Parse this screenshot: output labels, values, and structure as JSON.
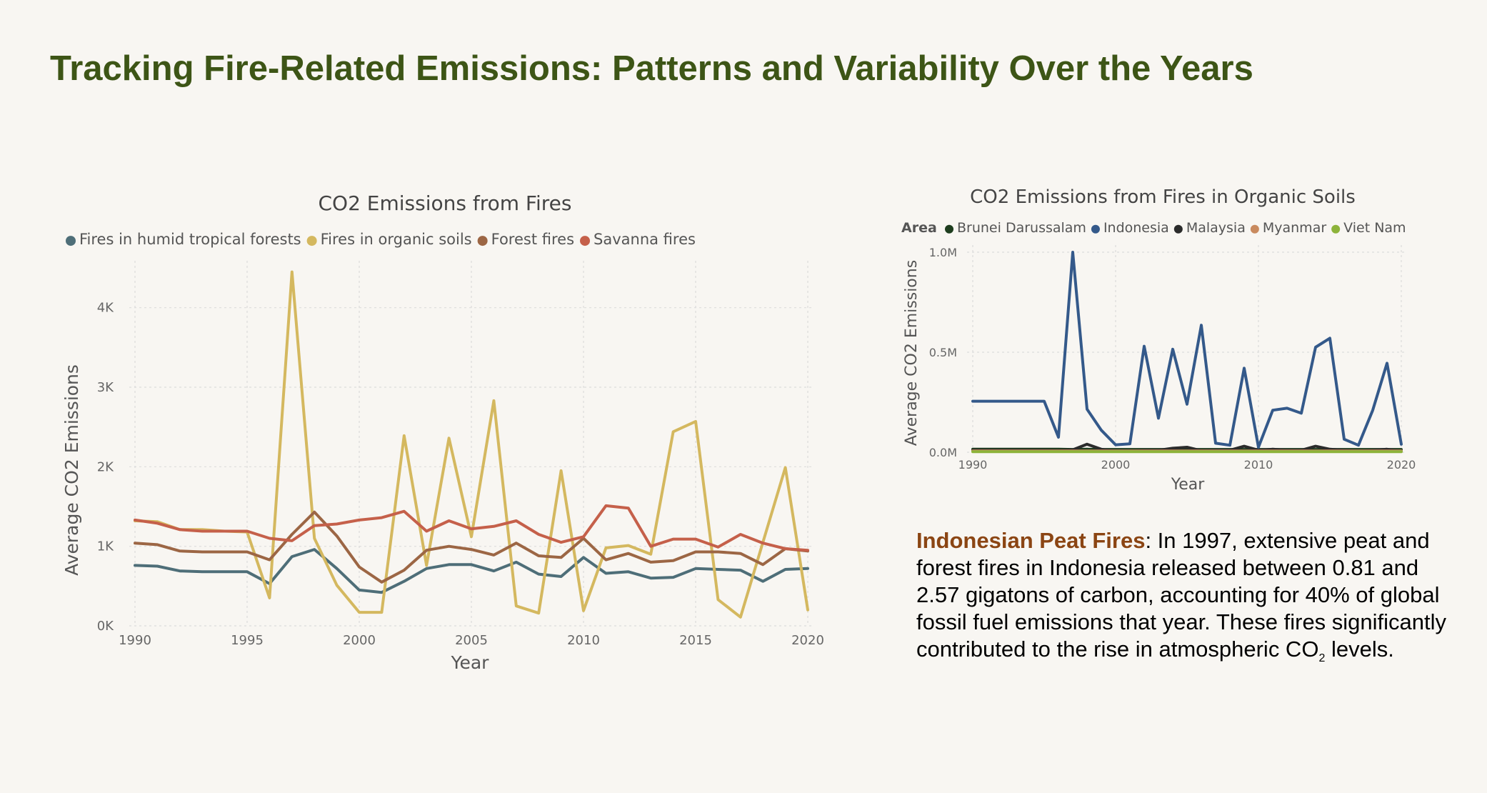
{
  "page": {
    "title": "Tracking Fire-Related Emissions: Patterns and Variability Over the Years"
  },
  "annotation": {
    "heading": "Indonesian Peat Fires",
    "body_before": ": In 1997, extensive peat and forest fires in Indonesia released between 0.81 and 2.57 gigatons of carbon, accounting for 40% of global fossil fuel emissions that year. These fires significantly contributed to the rise in atmospheric CO",
    "subscript": "2",
    "body_after": " levels."
  },
  "chart_data": [
    {
      "type": "line",
      "title": "CO2 Emissions from Fires",
      "xlabel": "Year",
      "ylabel": "Average CO2 Emissions",
      "x": [
        1990,
        1991,
        1992,
        1993,
        1994,
        1995,
        1996,
        1997,
        1998,
        1999,
        2000,
        2001,
        2002,
        2003,
        2004,
        2005,
        2006,
        2007,
        2008,
        2009,
        2010,
        2011,
        2012,
        2013,
        2014,
        2015,
        2016,
        2017,
        2018,
        2019,
        2020
      ],
      "xlim": [
        1990,
        2020
      ],
      "ylim": [
        0,
        4500
      ],
      "x_ticks": [
        {
          "value": 1990,
          "label": "1990"
        },
        {
          "value": 1995,
          "label": "1995"
        },
        {
          "value": 2000,
          "label": "2000"
        },
        {
          "value": 2005,
          "label": "2005"
        },
        {
          "value": 2010,
          "label": "2010"
        },
        {
          "value": 2015,
          "label": "2015"
        },
        {
          "value": 2020,
          "label": "2020"
        }
      ],
      "y_ticks": [
        {
          "value": 0,
          "label": "0K"
        },
        {
          "value": 1000,
          "label": "1K"
        },
        {
          "value": 2000,
          "label": "2K"
        },
        {
          "value": 3000,
          "label": "3K"
        },
        {
          "value": 4000,
          "label": "4K"
        }
      ],
      "grid": true,
      "legend_position": "top",
      "series": [
        {
          "name": "Fires in humid tropical forests",
          "color": "#4e6e78",
          "values": [
            760,
            750,
            690,
            680,
            680,
            680,
            530,
            870,
            960,
            720,
            450,
            420,
            560,
            720,
            770,
            770,
            690,
            800,
            650,
            620,
            860,
            660,
            680,
            600,
            610,
            720,
            710,
            700,
            560,
            710,
            720
          ]
        },
        {
          "name": "Fires in organic soils",
          "color": "#d4b85f",
          "values": [
            1320,
            1310,
            1210,
            1210,
            1190,
            1180,
            350,
            4450,
            1100,
            510,
            170,
            170,
            2390,
            760,
            2360,
            1120,
            2830,
            250,
            160,
            1950,
            190,
            980,
            1010,
            900,
            2440,
            2570,
            330,
            110,
            1050,
            1990,
            200
          ]
        },
        {
          "name": "Forest fires",
          "color": "#9c6644",
          "values": [
            1040,
            1020,
            940,
            930,
            930,
            930,
            830,
            1150,
            1430,
            1130,
            740,
            550,
            700,
            950,
            1000,
            960,
            890,
            1040,
            880,
            860,
            1100,
            830,
            910,
            800,
            820,
            930,
            930,
            910,
            770,
            970,
            940
          ]
        },
        {
          "name": "Savanna fires",
          "color": "#c5604a",
          "values": [
            1330,
            1290,
            1210,
            1190,
            1190,
            1190,
            1100,
            1070,
            1260,
            1280,
            1330,
            1360,
            1440,
            1190,
            1320,
            1220,
            1250,
            1320,
            1150,
            1050,
            1120,
            1510,
            1480,
            1000,
            1090,
            1090,
            990,
            1150,
            1040,
            970,
            950
          ]
        }
      ]
    },
    {
      "type": "line",
      "title": "CO2 Emissions from Fires in Organic Soils",
      "xlabel": "Year",
      "ylabel": "Average CO2 Emissions",
      "legend_title": "Area",
      "x": [
        1990,
        1991,
        1992,
        1993,
        1994,
        1995,
        1996,
        1997,
        1998,
        1999,
        2000,
        2001,
        2002,
        2003,
        2004,
        2005,
        2006,
        2007,
        2008,
        2009,
        2010,
        2011,
        2012,
        2013,
        2014,
        2015,
        2016,
        2017,
        2018,
        2019,
        2020
      ],
      "xlim": [
        1990,
        2020
      ],
      "ylim": [
        0,
        1000000
      ],
      "x_ticks": [
        {
          "value": 1990,
          "label": "1990"
        },
        {
          "value": 2000,
          "label": "2000"
        },
        {
          "value": 2010,
          "label": "2010"
        },
        {
          "value": 2020,
          "label": "2020"
        }
      ],
      "y_ticks": [
        {
          "value": 0,
          "label": "0.0M"
        },
        {
          "value": 500000,
          "label": "0.5M"
        },
        {
          "value": 1000000,
          "label": "1.0M"
        }
      ],
      "grid": true,
      "legend_position": "top",
      "series": [
        {
          "name": "Brunei Darussalam",
          "color": "#1e3d1e",
          "values": [
            15000,
            15000,
            15000,
            15000,
            15000,
            15000,
            15000,
            14000,
            15000,
            14000,
            14000,
            14000,
            14000,
            14000,
            14000,
            14000,
            14000,
            14000,
            14000,
            14000,
            14000,
            14000,
            14000,
            14000,
            14000,
            14000,
            14000,
            14000,
            14000,
            14000,
            14000
          ]
        },
        {
          "name": "Indonesia",
          "color": "#34598a",
          "values": [
            255000,
            255000,
            255000,
            255000,
            255000,
            255000,
            75000,
            1000000,
            215000,
            110000,
            37000,
            42000,
            530000,
            170000,
            515000,
            240000,
            635000,
            45000,
            35000,
            420000,
            25000,
            210000,
            220000,
            195000,
            525000,
            570000,
            65000,
            35000,
            210000,
            445000,
            40000
          ]
        },
        {
          "name": "Malaysia",
          "color": "#2b2b2b",
          "values": [
            10000,
            10000,
            10000,
            10000,
            10000,
            10000,
            8000,
            12000,
            40000,
            15000,
            5000,
            5000,
            10000,
            10000,
            20000,
            25000,
            8000,
            10000,
            10000,
            30000,
            10000,
            15000,
            10000,
            10000,
            30000,
            15000,
            10000,
            5000,
            10000,
            15000,
            5000
          ]
        },
        {
          "name": "Myanmar",
          "color": "#c98a5e",
          "values": [
            6000,
            6000,
            6000,
            6000,
            6000,
            6000,
            6000,
            6000,
            6000,
            6000,
            6000,
            6000,
            6000,
            6000,
            6000,
            6000,
            6000,
            6000,
            6000,
            6000,
            6000,
            6000,
            6000,
            6000,
            6000,
            6000,
            6000,
            6000,
            6000,
            6000,
            6000
          ]
        },
        {
          "name": "Viet Nam",
          "color": "#8db33a",
          "values": [
            3000,
            3000,
            3000,
            3000,
            3000,
            3000,
            3000,
            3000,
            3000,
            3000,
            3000,
            3000,
            3000,
            3000,
            3000,
            3000,
            3000,
            3000,
            3000,
            3000,
            3000,
            3000,
            3000,
            3000,
            3000,
            3000,
            3000,
            3000,
            3000,
            3000,
            3000
          ]
        }
      ]
    }
  ]
}
